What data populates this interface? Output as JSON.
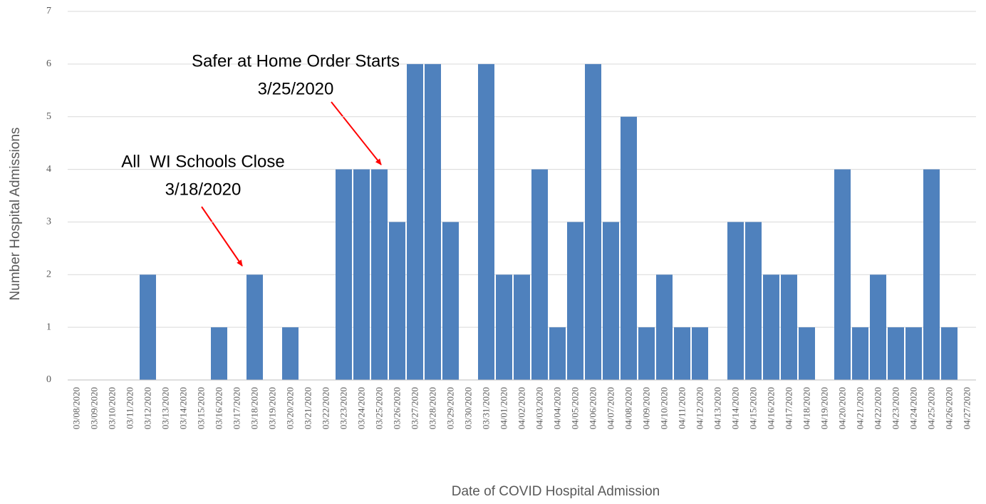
{
  "chart_data": {
    "type": "bar",
    "x_label": "Date of COVID Hospital Admission",
    "y_label": "Number Hospital Admissions",
    "categories": [
      "03/08/2020",
      "03/09/2020",
      "03/10/2020",
      "03/11/2020",
      "03/12/2020",
      "03/13/2020",
      "03/14/2020",
      "03/15/2020",
      "03/16/2020",
      "03/17/2020",
      "03/18/2020",
      "03/19/2020",
      "03/20/2020",
      "03/21/2020",
      "03/22/2020",
      "03/23/2020",
      "03/24/2020",
      "03/25/2020",
      "03/26/2020",
      "03/27/2020",
      "03/28/2020",
      "03/29/2020",
      "03/30/2020",
      "03/31/2020",
      "04/01/2020",
      "04/02/2020",
      "04/03/2020",
      "04/04/2020",
      "04/05/2020",
      "04/06/2020",
      "04/07/2020",
      "04/08/2020",
      "04/09/2020",
      "04/10/2020",
      "04/11/2020",
      "04/12/2020",
      "04/13/2020",
      "04/14/2020",
      "04/15/2020",
      "04/16/2020",
      "04/17/2020",
      "04/18/2020",
      "04/19/2020",
      "04/20/2020",
      "04/21/2020",
      "04/22/2020",
      "04/23/2020",
      "04/24/2020",
      "04/25/2020",
      "04/26/2020",
      "04/27/2020"
    ],
    "values": [
      0,
      0,
      0,
      0,
      2,
      0,
      0,
      0,
      1,
      0,
      2,
      0,
      1,
      0,
      0,
      4,
      4,
      4,
      3,
      6,
      6,
      3,
      0,
      6,
      2,
      2,
      4,
      1,
      3,
      6,
      3,
      5,
      1,
      2,
      1,
      1,
      0,
      3,
      3,
      2,
      2,
      1,
      0,
      4,
      1,
      2,
      1,
      1,
      4,
      1,
      0
    ],
    "color": "#4f81bd",
    "ylim": [
      0,
      7
    ],
    "yticks": [
      0,
      1,
      2,
      3,
      4,
      5,
      6,
      7
    ],
    "grid": true,
    "annotations": [
      {
        "lines": [
          "Safer at Home Order Starts",
          "3/25/2020"
        ]
      },
      {
        "lines": [
          "All  WI Schools Close",
          "3/18/2020"
        ]
      }
    ]
  }
}
